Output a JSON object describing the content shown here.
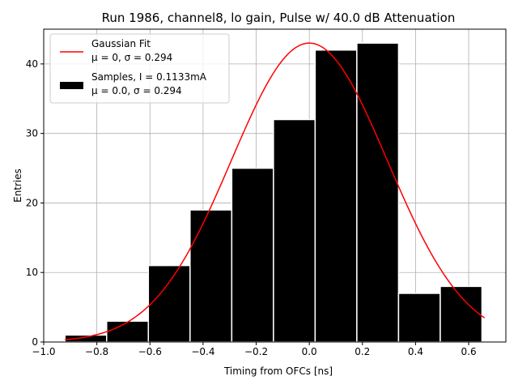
{
  "chart_data": {
    "type": "bar",
    "title": "Run 1986, channel8, lo gain, Pulse w/ 40.0 dB Attenuation",
    "xlabel": "Timing from OFCs [ns]",
    "ylabel": "Entries",
    "xlim": [
      -1.0,
      0.74
    ],
    "ylim": [
      0,
      45
    ],
    "xticks": [
      -1.0,
      -0.8,
      -0.6,
      -0.4,
      -0.2,
      0.0,
      0.2,
      0.4,
      0.6
    ],
    "xtick_labels": [
      "−1.0",
      "−0.8",
      "−0.6",
      "−0.4",
      "−0.2",
      "0.0",
      "0.2",
      "0.4",
      "0.6"
    ],
    "yticks": [
      0,
      10,
      20,
      30,
      40
    ],
    "ytick_labels": [
      "0",
      "10",
      "20",
      "30",
      "40"
    ],
    "grid": true,
    "legend_position": "upper-left",
    "bin_edges": [
      -0.92,
      -0.763,
      -0.606,
      -0.449,
      -0.292,
      -0.135,
      0.022,
      0.179,
      0.336,
      0.493,
      0.65
    ],
    "counts": [
      1,
      3,
      11,
      19,
      25,
      32,
      42,
      43,
      7,
      8
    ],
    "fit": {
      "amplitude": 43.0,
      "mu": 0.0,
      "sigma": 0.294,
      "x_range": [
        -0.92,
        0.66
      ]
    },
    "legend": [
      {
        "series": "fit",
        "line1": "Gaussian Fit",
        "line2": "μ = 0, σ = 0.294",
        "color": "#ff0000"
      },
      {
        "series": "samples",
        "line1": "Samples, I = 0.1133mA",
        "line2": "μ = 0.0, σ = 0.294",
        "color": "#000000"
      }
    ],
    "colors": {
      "bars": "#000000",
      "bar_edge": "#ffffff",
      "fit": "#ff0000",
      "grid": "#b0b0b0"
    }
  }
}
